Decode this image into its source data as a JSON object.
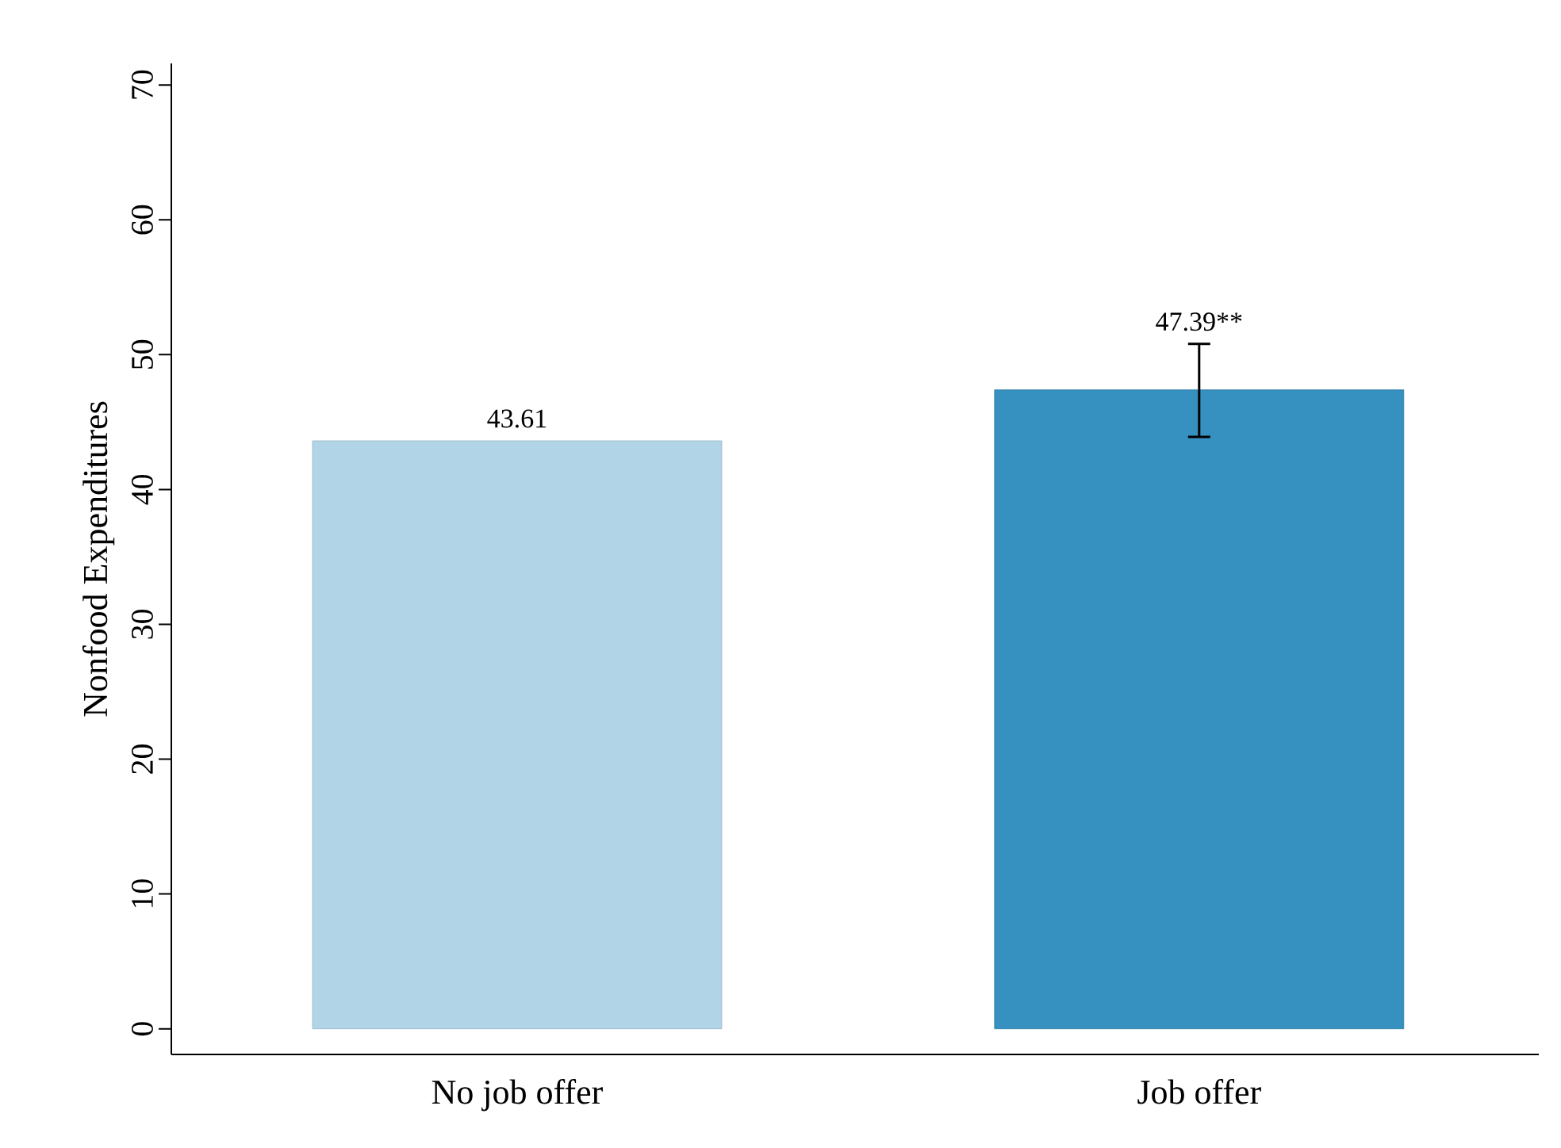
{
  "chart_data": {
    "type": "bar",
    "ylabel": "Nonfood Expenditures",
    "categories": [
      "No job offer",
      "Job offer"
    ],
    "values": [
      43.61,
      47.39
    ],
    "colors": [
      "#b1d4e7",
      "#3690c0"
    ],
    "errors": [
      null,
      [
        43.9,
        50.8
      ]
    ],
    "value_labels": [
      "43.61",
      "47.39**"
    ],
    "ylim": [
      -1.9,
      71.6
    ],
    "yticks": [
      0,
      10,
      20,
      30,
      40,
      50,
      60,
      70
    ],
    "grid": false
  }
}
